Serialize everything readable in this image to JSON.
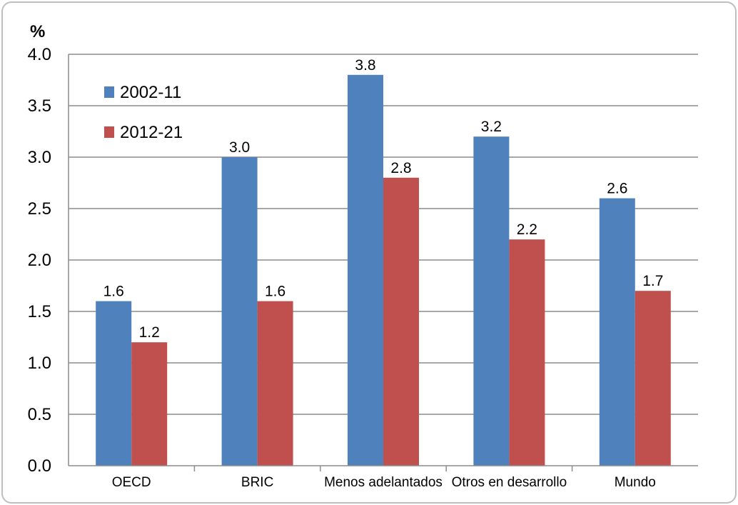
{
  "chart_data": {
    "type": "bar",
    "title": "",
    "xlabel": "",
    "ylabel": "%",
    "ylim": [
      0,
      4.0
    ],
    "yticks": [
      0.0,
      0.5,
      1.0,
      1.5,
      2.0,
      2.5,
      3.0,
      3.5,
      4.0
    ],
    "ytick_labels": [
      "0.0",
      "0.5",
      "1.0",
      "1.5",
      "2.0",
      "2.5",
      "3.0",
      "3.5",
      "4.0"
    ],
    "grid": true,
    "legend_placement": "top-left",
    "categories": [
      "OECD",
      "BRIC",
      "Menos adelantados",
      "Otros en desarrollo",
      "Mundo"
    ],
    "series": [
      {
        "name": "2002-11",
        "color": "#4f81bd",
        "values": [
          1.6,
          3.0,
          3.8,
          3.2,
          2.6
        ],
        "labels": [
          "1.6",
          "3.0",
          "3.8",
          "3.2",
          "2.6"
        ]
      },
      {
        "name": "2012-21",
        "color": "#c0504d",
        "values": [
          1.2,
          1.6,
          2.8,
          2.2,
          1.7
        ],
        "labels": [
          "1.2",
          "1.6",
          "2.8",
          "2.2",
          "1.7"
        ]
      }
    ]
  }
}
